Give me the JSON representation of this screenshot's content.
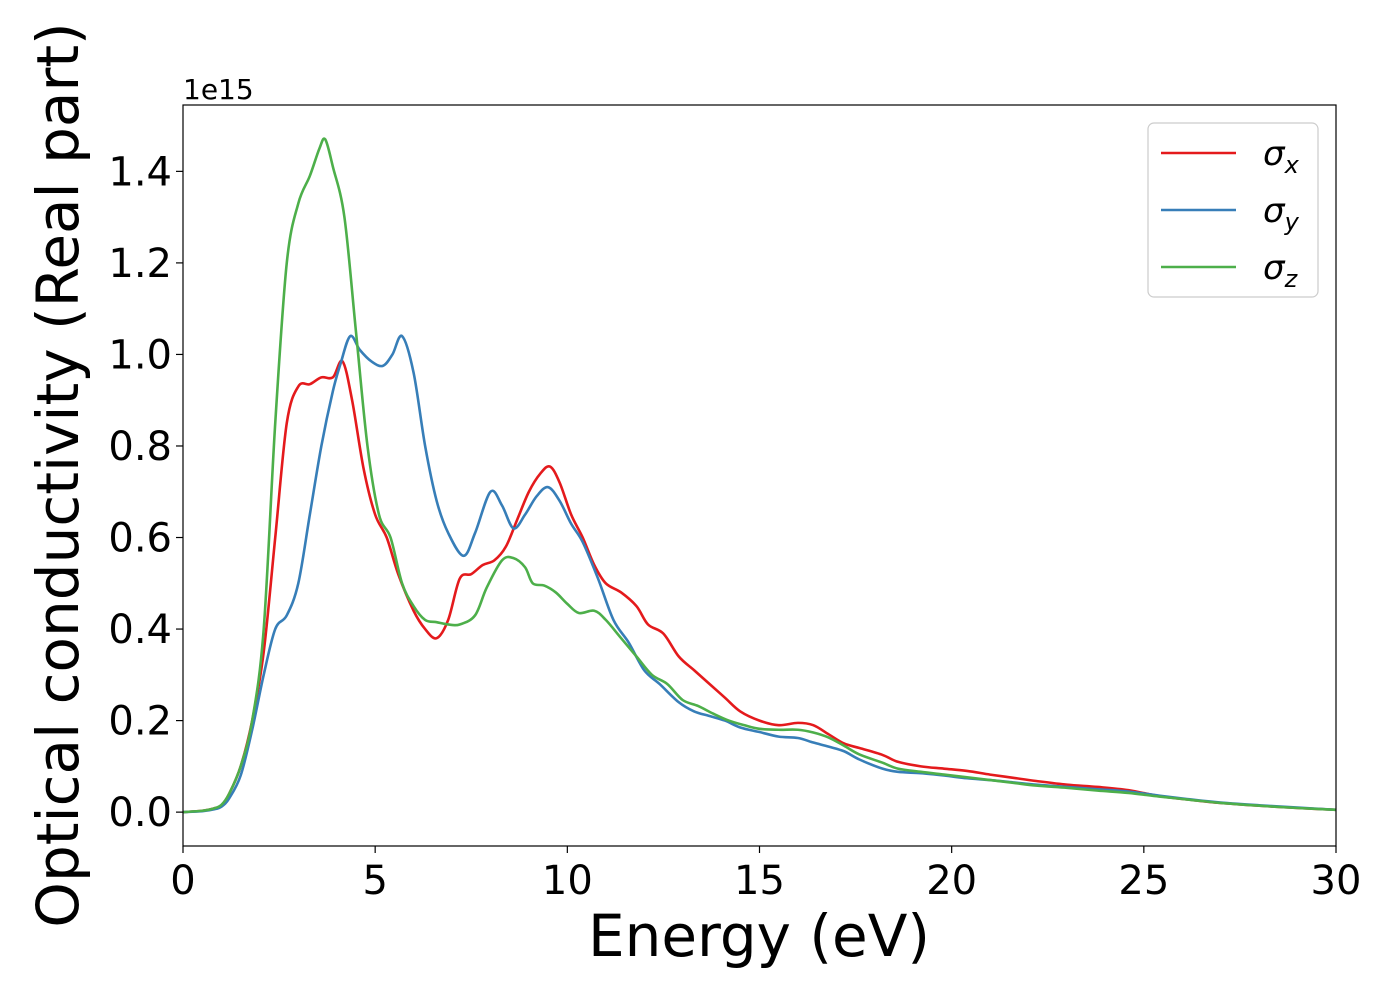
{
  "chart_data": {
    "type": "line",
    "title": "",
    "xlabel": "Energy (eV)",
    "ylabel": "Optical conductivity (Real part)",
    "y_multiplier_label": "1e15",
    "xlim": [
      0,
      30
    ],
    "ylim": [
      -0.074,
      1.545
    ],
    "x_ticks": [
      0,
      5,
      10,
      15,
      20,
      25,
      30
    ],
    "x_tick_labels": [
      "0",
      "5",
      "10",
      "15",
      "20",
      "25",
      "30"
    ],
    "y_ticks": [
      0.0,
      0.2,
      0.4,
      0.6,
      0.8,
      1.0,
      1.2,
      1.4
    ],
    "y_tick_labels": [
      "0.0",
      "0.2",
      "0.4",
      "0.6",
      "0.8",
      "1.0",
      "1.2",
      "1.4"
    ],
    "grid": false,
    "legend_position": "top-right",
    "series": [
      {
        "name": "σ_x",
        "label_main": "σ",
        "label_sub": "x",
        "color": "#e41a1c",
        "points": [
          [
            0,
            0.0
          ],
          [
            0.5,
            0.003
          ],
          [
            0.8,
            0.008
          ],
          [
            1.0,
            0.015
          ],
          [
            1.2,
            0.04
          ],
          [
            1.5,
            0.1
          ],
          [
            1.8,
            0.2
          ],
          [
            2.1,
            0.35
          ],
          [
            2.4,
            0.6
          ],
          [
            2.7,
            0.85
          ],
          [
            3.0,
            0.93
          ],
          [
            3.3,
            0.935
          ],
          [
            3.6,
            0.95
          ],
          [
            3.9,
            0.95
          ],
          [
            4.15,
            0.985
          ],
          [
            4.4,
            0.9
          ],
          [
            4.7,
            0.75
          ],
          [
            5.0,
            0.65
          ],
          [
            5.3,
            0.6
          ],
          [
            5.6,
            0.52
          ],
          [
            6.0,
            0.44
          ],
          [
            6.3,
            0.4
          ],
          [
            6.6,
            0.38
          ],
          [
            6.9,
            0.42
          ],
          [
            7.2,
            0.51
          ],
          [
            7.5,
            0.52
          ],
          [
            7.8,
            0.54
          ],
          [
            8.1,
            0.55
          ],
          [
            8.4,
            0.58
          ],
          [
            8.7,
            0.64
          ],
          [
            9.0,
            0.7
          ],
          [
            9.3,
            0.74
          ],
          [
            9.55,
            0.755
          ],
          [
            9.8,
            0.72
          ],
          [
            10.1,
            0.65
          ],
          [
            10.4,
            0.6
          ],
          [
            10.7,
            0.54
          ],
          [
            11.0,
            0.5
          ],
          [
            11.4,
            0.48
          ],
          [
            11.8,
            0.45
          ],
          [
            12.1,
            0.41
          ],
          [
            12.5,
            0.39
          ],
          [
            12.9,
            0.34
          ],
          [
            13.3,
            0.31
          ],
          [
            13.7,
            0.28
          ],
          [
            14.1,
            0.25
          ],
          [
            14.5,
            0.22
          ],
          [
            15.0,
            0.2
          ],
          [
            15.5,
            0.19
          ],
          [
            16.0,
            0.195
          ],
          [
            16.4,
            0.19
          ],
          [
            16.8,
            0.17
          ],
          [
            17.2,
            0.15
          ],
          [
            17.6,
            0.14
          ],
          [
            18.2,
            0.125
          ],
          [
            18.6,
            0.11
          ],
          [
            19.2,
            0.1
          ],
          [
            19.8,
            0.095
          ],
          [
            20.4,
            0.09
          ],
          [
            21.0,
            0.082
          ],
          [
            21.6,
            0.075
          ],
          [
            22.2,
            0.068
          ],
          [
            23.0,
            0.06
          ],
          [
            23.8,
            0.055
          ],
          [
            24.6,
            0.048
          ],
          [
            25.4,
            0.035
          ],
          [
            26.2,
            0.027
          ],
          [
            27.0,
            0.02
          ],
          [
            28.0,
            0.014
          ],
          [
            29.0,
            0.009
          ],
          [
            30.0,
            0.005
          ]
        ]
      },
      {
        "name": "σ_y",
        "label_main": "σ",
        "label_sub": "y",
        "color": "#377eb8",
        "points": [
          [
            0,
            0.0
          ],
          [
            0.5,
            0.002
          ],
          [
            0.8,
            0.006
          ],
          [
            1.0,
            0.012
          ],
          [
            1.2,
            0.03
          ],
          [
            1.5,
            0.08
          ],
          [
            1.8,
            0.18
          ],
          [
            2.1,
            0.3
          ],
          [
            2.4,
            0.4
          ],
          [
            2.7,
            0.43
          ],
          [
            3.0,
            0.5
          ],
          [
            3.3,
            0.65
          ],
          [
            3.6,
            0.8
          ],
          [
            3.9,
            0.92
          ],
          [
            4.1,
            0.98
          ],
          [
            4.35,
            1.04
          ],
          [
            4.6,
            1.01
          ],
          [
            4.9,
            0.985
          ],
          [
            5.2,
            0.975
          ],
          [
            5.45,
            1.0
          ],
          [
            5.7,
            1.04
          ],
          [
            6.0,
            0.96
          ],
          [
            6.3,
            0.8
          ],
          [
            6.6,
            0.68
          ],
          [
            6.9,
            0.61
          ],
          [
            7.3,
            0.56
          ],
          [
            7.6,
            0.61
          ],
          [
            8.0,
            0.7
          ],
          [
            8.3,
            0.67
          ],
          [
            8.6,
            0.62
          ],
          [
            8.9,
            0.65
          ],
          [
            9.2,
            0.69
          ],
          [
            9.5,
            0.71
          ],
          [
            9.8,
            0.68
          ],
          [
            10.1,
            0.63
          ],
          [
            10.4,
            0.59
          ],
          [
            10.8,
            0.51
          ],
          [
            11.2,
            0.42
          ],
          [
            11.6,
            0.37
          ],
          [
            12.0,
            0.31
          ],
          [
            12.4,
            0.28
          ],
          [
            12.9,
            0.24
          ],
          [
            13.3,
            0.22
          ],
          [
            13.7,
            0.21
          ],
          [
            14.1,
            0.2
          ],
          [
            14.5,
            0.185
          ],
          [
            15.0,
            0.175
          ],
          [
            15.5,
            0.165
          ],
          [
            16.0,
            0.162
          ],
          [
            16.4,
            0.152
          ],
          [
            16.8,
            0.143
          ],
          [
            17.2,
            0.133
          ],
          [
            17.6,
            0.115
          ],
          [
            18.2,
            0.095
          ],
          [
            18.6,
            0.088
          ],
          [
            19.2,
            0.085
          ],
          [
            19.8,
            0.08
          ],
          [
            20.4,
            0.074
          ],
          [
            21.0,
            0.07
          ],
          [
            21.6,
            0.065
          ],
          [
            22.2,
            0.06
          ],
          [
            23.0,
            0.055
          ],
          [
            23.8,
            0.05
          ],
          [
            24.6,
            0.045
          ],
          [
            25.4,
            0.036
          ],
          [
            26.2,
            0.028
          ],
          [
            27.0,
            0.021
          ],
          [
            28.0,
            0.015
          ],
          [
            29.0,
            0.01
          ],
          [
            30.0,
            0.005
          ]
        ]
      },
      {
        "name": "σ_z",
        "label_main": "σ",
        "label_sub": "z",
        "color": "#4daf4a",
        "points": [
          [
            0,
            0.0
          ],
          [
            0.5,
            0.003
          ],
          [
            0.8,
            0.008
          ],
          [
            1.0,
            0.016
          ],
          [
            1.2,
            0.04
          ],
          [
            1.5,
            0.1
          ],
          [
            1.8,
            0.2
          ],
          [
            2.1,
            0.4
          ],
          [
            2.4,
            0.85
          ],
          [
            2.7,
            1.2
          ],
          [
            3.0,
            1.33
          ],
          [
            3.3,
            1.39
          ],
          [
            3.55,
            1.45
          ],
          [
            3.7,
            1.47
          ],
          [
            3.9,
            1.41
          ],
          [
            4.2,
            1.3
          ],
          [
            4.5,
            1.05
          ],
          [
            4.8,
            0.8
          ],
          [
            5.1,
            0.65
          ],
          [
            5.4,
            0.6
          ],
          [
            5.7,
            0.5
          ],
          [
            6.0,
            0.45
          ],
          [
            6.3,
            0.42
          ],
          [
            6.6,
            0.415
          ],
          [
            6.9,
            0.41
          ],
          [
            7.2,
            0.41
          ],
          [
            7.6,
            0.43
          ],
          [
            7.9,
            0.49
          ],
          [
            8.3,
            0.55
          ],
          [
            8.6,
            0.555
          ],
          [
            8.9,
            0.535
          ],
          [
            9.1,
            0.5
          ],
          [
            9.4,
            0.495
          ],
          [
            9.7,
            0.48
          ],
          [
            10.0,
            0.455
          ],
          [
            10.3,
            0.435
          ],
          [
            10.7,
            0.44
          ],
          [
            11.0,
            0.42
          ],
          [
            11.4,
            0.38
          ],
          [
            11.8,
            0.34
          ],
          [
            12.2,
            0.3
          ],
          [
            12.6,
            0.28
          ],
          [
            13.0,
            0.245
          ],
          [
            13.4,
            0.232
          ],
          [
            13.8,
            0.215
          ],
          [
            14.2,
            0.2
          ],
          [
            14.6,
            0.19
          ],
          [
            15.0,
            0.182
          ],
          [
            15.5,
            0.18
          ],
          [
            16.0,
            0.18
          ],
          [
            16.4,
            0.174
          ],
          [
            16.8,
            0.163
          ],
          [
            17.2,
            0.145
          ],
          [
            17.6,
            0.126
          ],
          [
            18.2,
            0.108
          ],
          [
            18.6,
            0.095
          ],
          [
            19.2,
            0.088
          ],
          [
            19.8,
            0.082
          ],
          [
            20.4,
            0.076
          ],
          [
            21.0,
            0.07
          ],
          [
            21.6,
            0.064
          ],
          [
            22.2,
            0.058
          ],
          [
            23.0,
            0.053
          ],
          [
            23.8,
            0.047
          ],
          [
            24.6,
            0.042
          ],
          [
            25.4,
            0.034
          ],
          [
            26.2,
            0.027
          ],
          [
            27.0,
            0.02
          ],
          [
            28.0,
            0.014
          ],
          [
            29.0,
            0.009
          ],
          [
            30.0,
            0.005
          ]
        ]
      }
    ]
  }
}
